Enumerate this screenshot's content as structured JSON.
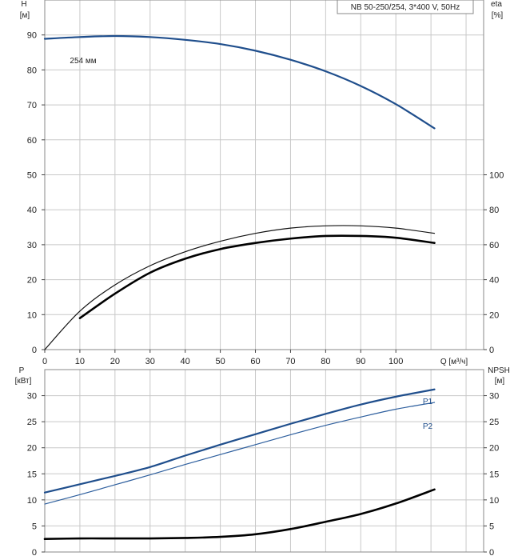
{
  "chart_data": [
    {
      "type": "line",
      "model": "NB 50-250/254, 3*400 V, 50Hz",
      "left_axis": {
        "label_line1": "H",
        "label_line2": "[м]",
        "range": [
          0,
          100
        ],
        "ticks": [
          "0",
          "10",
          "20",
          "30",
          "40",
          "50",
          "60",
          "70",
          "80",
          "90"
        ]
      },
      "right_axis": {
        "label_line1": "eta",
        "label_line2": "[%]",
        "range": [
          0,
          200
        ],
        "ticks": [
          "0",
          "20",
          "40",
          "60",
          "80",
          "100"
        ]
      },
      "x_axis": {
        "label": "Q [м³/ч]",
        "range": [
          0,
          125
        ],
        "ticks": [
          "0",
          "10",
          "20",
          "30",
          "40",
          "50",
          "60",
          "70",
          "80",
          "90",
          "100"
        ]
      },
      "grid": true,
      "annotation": "254 мм",
      "series": [
        {
          "axis": "left",
          "color": "#1f4e8c",
          "width": 2.2,
          "x": [
            0,
            10,
            20,
            30,
            40,
            50,
            60,
            70,
            80,
            90,
            100,
            111
          ],
          "y": [
            88.9,
            89.4,
            89.7,
            89.4,
            88.6,
            87.4,
            85.5,
            82.9,
            79.6,
            75.4,
            70.2,
            63.3
          ]
        },
        {
          "axis": "right",
          "color": "#111111",
          "width": 1.2,
          "x": [
            0,
            10,
            20,
            30,
            40,
            50,
            60,
            70,
            80,
            90,
            100,
            111
          ],
          "y": [
            0,
            22,
            37,
            48,
            56,
            62,
            66.5,
            69.5,
            70.8,
            70.8,
            69.5,
            66.5
          ]
        },
        {
          "axis": "right",
          "color": "#000000",
          "width": 2.6,
          "x": [
            10,
            20,
            30,
            40,
            50,
            60,
            70,
            80,
            90,
            100,
            111
          ],
          "y": [
            18,
            32,
            44,
            52,
            57.5,
            61,
            63.5,
            65,
            65,
            64,
            61
          ]
        }
      ]
    },
    {
      "type": "line",
      "left_axis": {
        "label_line1": "P",
        "label_line2": "[кВт]",
        "range": [
          0,
          35
        ],
        "ticks": [
          "0",
          "5",
          "10",
          "15",
          "20",
          "25",
          "30"
        ]
      },
      "right_axis": {
        "label_line1": "NPSH",
        "label_line2": "[м]",
        "range": [
          0,
          35
        ],
        "ticks": [
          "0",
          "5",
          "10",
          "15",
          "20",
          "25",
          "30"
        ]
      },
      "x_axis": {
        "range": [
          0,
          125
        ]
      },
      "grid": true,
      "series": [
        {
          "name": "P1",
          "axis": "left",
          "color": "#1f4e8c",
          "width": 2.2,
          "x": [
            0,
            10,
            20,
            30,
            40,
            50,
            60,
            70,
            80,
            90,
            100,
            111
          ],
          "y": [
            11.4,
            13.0,
            14.6,
            16.3,
            18.5,
            20.6,
            22.6,
            24.6,
            26.5,
            28.3,
            29.8,
            31.2
          ]
        },
        {
          "name": "P2",
          "axis": "left",
          "color": "#2e5f9e",
          "width": 1.2,
          "x": [
            0,
            10,
            20,
            30,
            40,
            50,
            60,
            70,
            80,
            90,
            100,
            111
          ],
          "y": [
            9.2,
            11.0,
            12.9,
            14.8,
            16.8,
            18.7,
            20.6,
            22.5,
            24.3,
            25.9,
            27.4,
            28.7
          ]
        },
        {
          "axis": "right",
          "color": "#000000",
          "width": 2.6,
          "x": [
            0,
            10,
            20,
            30,
            40,
            50,
            60,
            70,
            80,
            90,
            100,
            111
          ],
          "y": [
            2.5,
            2.6,
            2.6,
            2.6,
            2.7,
            2.9,
            3.4,
            4.4,
            5.8,
            7.3,
            9.3,
            12.0
          ]
        }
      ]
    }
  ]
}
